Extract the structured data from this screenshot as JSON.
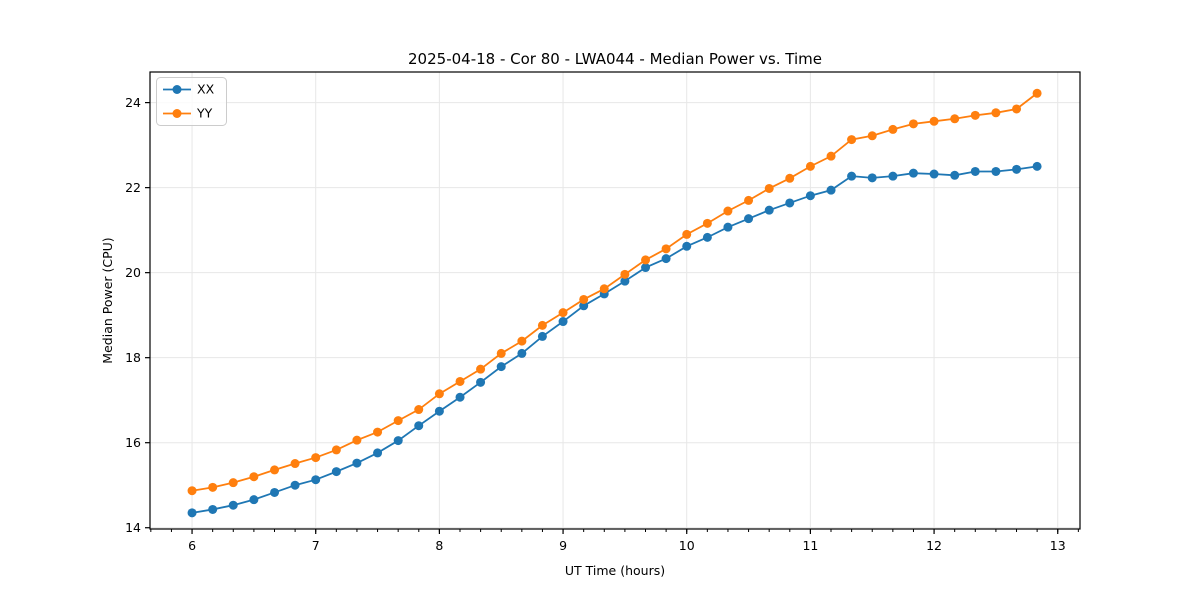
{
  "figure": {
    "background": "#ffffff",
    "spine_color": "#000000",
    "grid_color": "#e7e7e7",
    "legend_border_color": "#cccccc",
    "legend_background": "rgba(255,255,255,0.8)"
  },
  "chart_data": {
    "type": "line",
    "title": "2025-04-18 - Cor 80 - LWA044 - Median Power vs. Time",
    "xlabel": "UT Time (hours)",
    "ylabel": "Median Power (CPU)",
    "xlim": [
      5.66,
      13.18
    ],
    "ylim": [
      13.97,
      24.72
    ],
    "x_major_ticks": [
      6,
      7,
      8,
      9,
      10,
      11,
      12,
      13
    ],
    "x_minor_step": 0.166667,
    "y_major_ticks": [
      14,
      16,
      18,
      20,
      22,
      24
    ],
    "grid": "major gridlines only, light gray",
    "legend_position": "upper-left",
    "marker": "circle",
    "x": [
      6.0,
      6.167,
      6.333,
      6.5,
      6.667,
      6.833,
      7.0,
      7.167,
      7.333,
      7.5,
      7.667,
      7.833,
      8.0,
      8.167,
      8.333,
      8.5,
      8.667,
      8.833,
      9.0,
      9.167,
      9.333,
      9.5,
      9.667,
      9.833,
      10.0,
      10.167,
      10.333,
      10.5,
      10.667,
      10.833,
      11.0,
      11.167,
      11.333,
      11.5,
      11.667,
      11.833,
      12.0,
      12.167,
      12.333,
      12.5,
      12.667,
      12.833
    ],
    "series": [
      {
        "name": "XX",
        "color": "#1f77b4",
        "values": [
          14.35,
          14.43,
          14.53,
          14.66,
          14.83,
          15.0,
          15.13,
          15.32,
          15.52,
          15.76,
          16.05,
          16.4,
          16.74,
          17.07,
          17.42,
          17.79,
          18.1,
          18.5,
          18.85,
          19.22,
          19.5,
          19.8,
          20.12,
          20.33,
          20.62,
          20.83,
          21.07,
          21.27,
          21.47,
          21.64,
          21.81,
          21.94,
          22.27,
          22.23,
          22.27,
          22.34,
          22.32,
          22.29,
          22.38,
          22.38,
          22.43,
          22.5
        ]
      },
      {
        "name": "YY",
        "color": "#ff7f0e",
        "values": [
          14.87,
          14.95,
          15.06,
          15.2,
          15.36,
          15.51,
          15.65,
          15.83,
          16.06,
          16.25,
          16.52,
          16.78,
          17.15,
          17.44,
          17.73,
          18.1,
          18.39,
          18.76,
          19.06,
          19.37,
          19.62,
          19.96,
          20.3,
          20.56,
          20.9,
          21.16,
          21.45,
          21.7,
          21.98,
          22.22,
          22.5,
          22.74,
          23.13,
          23.22,
          23.37,
          23.5,
          23.56,
          23.62,
          23.7,
          23.76,
          23.85,
          24.22
        ]
      }
    ]
  }
}
